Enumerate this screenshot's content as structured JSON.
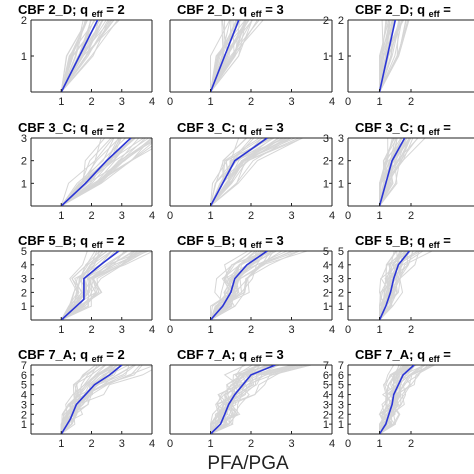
{
  "figure": {
    "xlabel": "PFA/PGA",
    "colors": {
      "median": "#2b35d6",
      "records": "#d6d6d6",
      "axes": "#222222"
    }
  },
  "chart_data": [
    {
      "type": "line",
      "title": "CBF 2_D; q",
      "q_sub": "eff",
      "q_value": "= 2",
      "ylim": [
        0,
        2
      ],
      "yticks": [
        1,
        2
      ],
      "xlim": [
        0,
        4
      ],
      "xticks": [
        1,
        2,
        3,
        4
      ],
      "xtick_labels": [
        "1",
        "2",
        "3",
        "4"
      ],
      "median": {
        "x": [
          1.0,
          2.2
        ],
        "y": [
          0,
          2
        ]
      }
    },
    {
      "type": "line",
      "title": "CBF 2_D; q",
      "q_sub": "eff",
      "q_value": "= 3",
      "ylim": [
        0,
        2
      ],
      "yticks": [
        1,
        2
      ],
      "xlim": [
        0,
        4
      ],
      "xticks": [
        0,
        1,
        2,
        3,
        4
      ],
      "xtick_labels": [
        "0",
        "1",
        "2",
        "3",
        "4"
      ],
      "median": {
        "x": [
          1.0,
          1.7
        ],
        "y": [
          0,
          2
        ]
      }
    },
    {
      "type": "line",
      "title": "CBF 2_D; q",
      "q_sub": "eff",
      "q_value": "=",
      "ylim": [
        0,
        2
      ],
      "yticks": [
        1,
        2
      ],
      "xlim": [
        0,
        4
      ],
      "xticks": [
        0,
        1,
        2
      ],
      "xtick_labels": [
        "0",
        "1",
        "2"
      ],
      "median": {
        "x": [
          1.0,
          1.5
        ],
        "y": [
          0,
          2
        ]
      }
    },
    {
      "type": "line",
      "title": "CBF 3_C; q",
      "q_sub": "eff",
      "q_value": "= 2",
      "ylim": [
        0,
        3
      ],
      "yticks": [
        1,
        2,
        3
      ],
      "xlim": [
        0,
        4
      ],
      "xticks": [
        1,
        2,
        3,
        4
      ],
      "xtick_labels": [
        "1",
        "2",
        "3",
        "4"
      ],
      "median": {
        "x": [
          1.0,
          1.8,
          2.5,
          3.3
        ],
        "y": [
          0,
          1,
          2,
          3
        ]
      }
    },
    {
      "type": "line",
      "title": "CBF 3_C; q",
      "q_sub": "eff",
      "q_value": "= 3",
      "ylim": [
        0,
        3
      ],
      "yticks": [
        1,
        2,
        3
      ],
      "xlim": [
        0,
        4
      ],
      "xticks": [
        0,
        1,
        2,
        3,
        4
      ],
      "xtick_labels": [
        "0",
        "1",
        "2",
        "3",
        "4"
      ],
      "median": {
        "x": [
          1.0,
          1.3,
          1.6,
          2.4
        ],
        "y": [
          0,
          1,
          2,
          3
        ]
      }
    },
    {
      "type": "line",
      "title": "CBF 3_C; q",
      "q_sub": "eff",
      "q_value": "=",
      "ylim": [
        0,
        3
      ],
      "yticks": [
        1,
        2,
        3
      ],
      "xlim": [
        0,
        4
      ],
      "xticks": [
        0,
        1,
        2
      ],
      "xtick_labels": [
        "0",
        "1",
        "2"
      ],
      "median": {
        "x": [
          1.0,
          1.2,
          1.4,
          1.8
        ],
        "y": [
          0,
          1,
          2,
          3
        ]
      }
    },
    {
      "type": "line",
      "title": "CBF 5_B; q",
      "q_sub": "eff",
      "q_value": "= 2",
      "ylim": [
        0,
        5
      ],
      "yticks": [
        1,
        2,
        3,
        4,
        5
      ],
      "xlim": [
        0,
        4
      ],
      "xticks": [
        1,
        2,
        3,
        4
      ],
      "xtick_labels": [
        "1",
        "2",
        "3",
        "4"
      ],
      "median": {
        "x": [
          1.0,
          1.75,
          1.75,
          2.3,
          2.9
        ],
        "y": [
          0,
          1.5,
          3,
          4,
          5
        ]
      }
    },
    {
      "type": "line",
      "title": "CBF 5_B; q",
      "q_sub": "eff",
      "q_value": "= 3",
      "ylim": [
        0,
        5
      ],
      "yticks": [
        1,
        2,
        3,
        4,
        5
      ],
      "xlim": [
        0,
        4
      ],
      "xticks": [
        0,
        1,
        2,
        3,
        4
      ],
      "xtick_labels": [
        "0",
        "1",
        "2",
        "3",
        "4"
      ],
      "median": {
        "x": [
          1.0,
          1.3,
          1.5,
          1.6,
          1.9,
          2.4
        ],
        "y": [
          0,
          1,
          2,
          3,
          4,
          5
        ]
      }
    },
    {
      "type": "line",
      "title": "CBF 5_B; q",
      "q_sub": "eff",
      "q_value": "=",
      "ylim": [
        0,
        5
      ],
      "yticks": [
        1,
        2,
        3,
        4,
        5
      ],
      "xlim": [
        0,
        4
      ],
      "xticks": [
        0,
        1,
        2
      ],
      "xtick_labels": [
        "0",
        "1",
        "2"
      ],
      "median": {
        "x": [
          1.0,
          1.2,
          1.35,
          1.45,
          1.6,
          1.95
        ],
        "y": [
          0,
          1,
          2,
          3,
          4,
          5
        ]
      }
    },
    {
      "type": "line",
      "title": "CBF 7_A; q",
      "q_sub": "eff",
      "q_value": "= 2",
      "ylim": [
        0,
        7
      ],
      "yticks": [
        1,
        2,
        3,
        4,
        5,
        6,
        7
      ],
      "xlim": [
        0,
        4
      ],
      "xticks": [
        1,
        2,
        3,
        4
      ],
      "xtick_labels": [
        "1",
        "2",
        "3",
        "4"
      ],
      "median": {
        "x": [
          1.0,
          1.3,
          1.5,
          1.8,
          2.1,
          2.6,
          3.0
        ],
        "y": [
          0,
          1.5,
          3,
          4,
          5,
          6,
          7
        ]
      }
    },
    {
      "type": "line",
      "title": "CBF 7_A; q",
      "q_sub": "eff",
      "q_value": "= 3",
      "ylim": [
        0,
        7
      ],
      "yticks": [
        1,
        2,
        3,
        4,
        5,
        6,
        7
      ],
      "xlim": [
        0,
        4
      ],
      "xticks": [
        0,
        1,
        2,
        3,
        4
      ],
      "xtick_labels": [
        "0",
        "1",
        "2",
        "3",
        "4"
      ],
      "median": {
        "x": [
          1.0,
          1.25,
          1.35,
          1.45,
          1.6,
          1.8,
          2.0,
          2.6
        ],
        "y": [
          0,
          1,
          2,
          3,
          4,
          5,
          6,
          7
        ]
      }
    },
    {
      "type": "line",
      "title": "CBF 7_A; q",
      "q_sub": "eff",
      "q_value": "=",
      "ylim": [
        0,
        7
      ],
      "yticks": [
        1,
        2,
        3,
        4,
        5,
        6,
        7
      ],
      "xlim": [
        0,
        4
      ],
      "xticks": [
        0,
        1,
        2
      ],
      "xtick_labels": [
        "0",
        "1",
        "2"
      ],
      "median": {
        "x": [
          1.0,
          1.2,
          1.3,
          1.4,
          1.45,
          1.6,
          1.75,
          2.1
        ],
        "y": [
          0,
          1,
          2,
          3,
          4,
          5,
          6,
          7
        ]
      }
    }
  ]
}
